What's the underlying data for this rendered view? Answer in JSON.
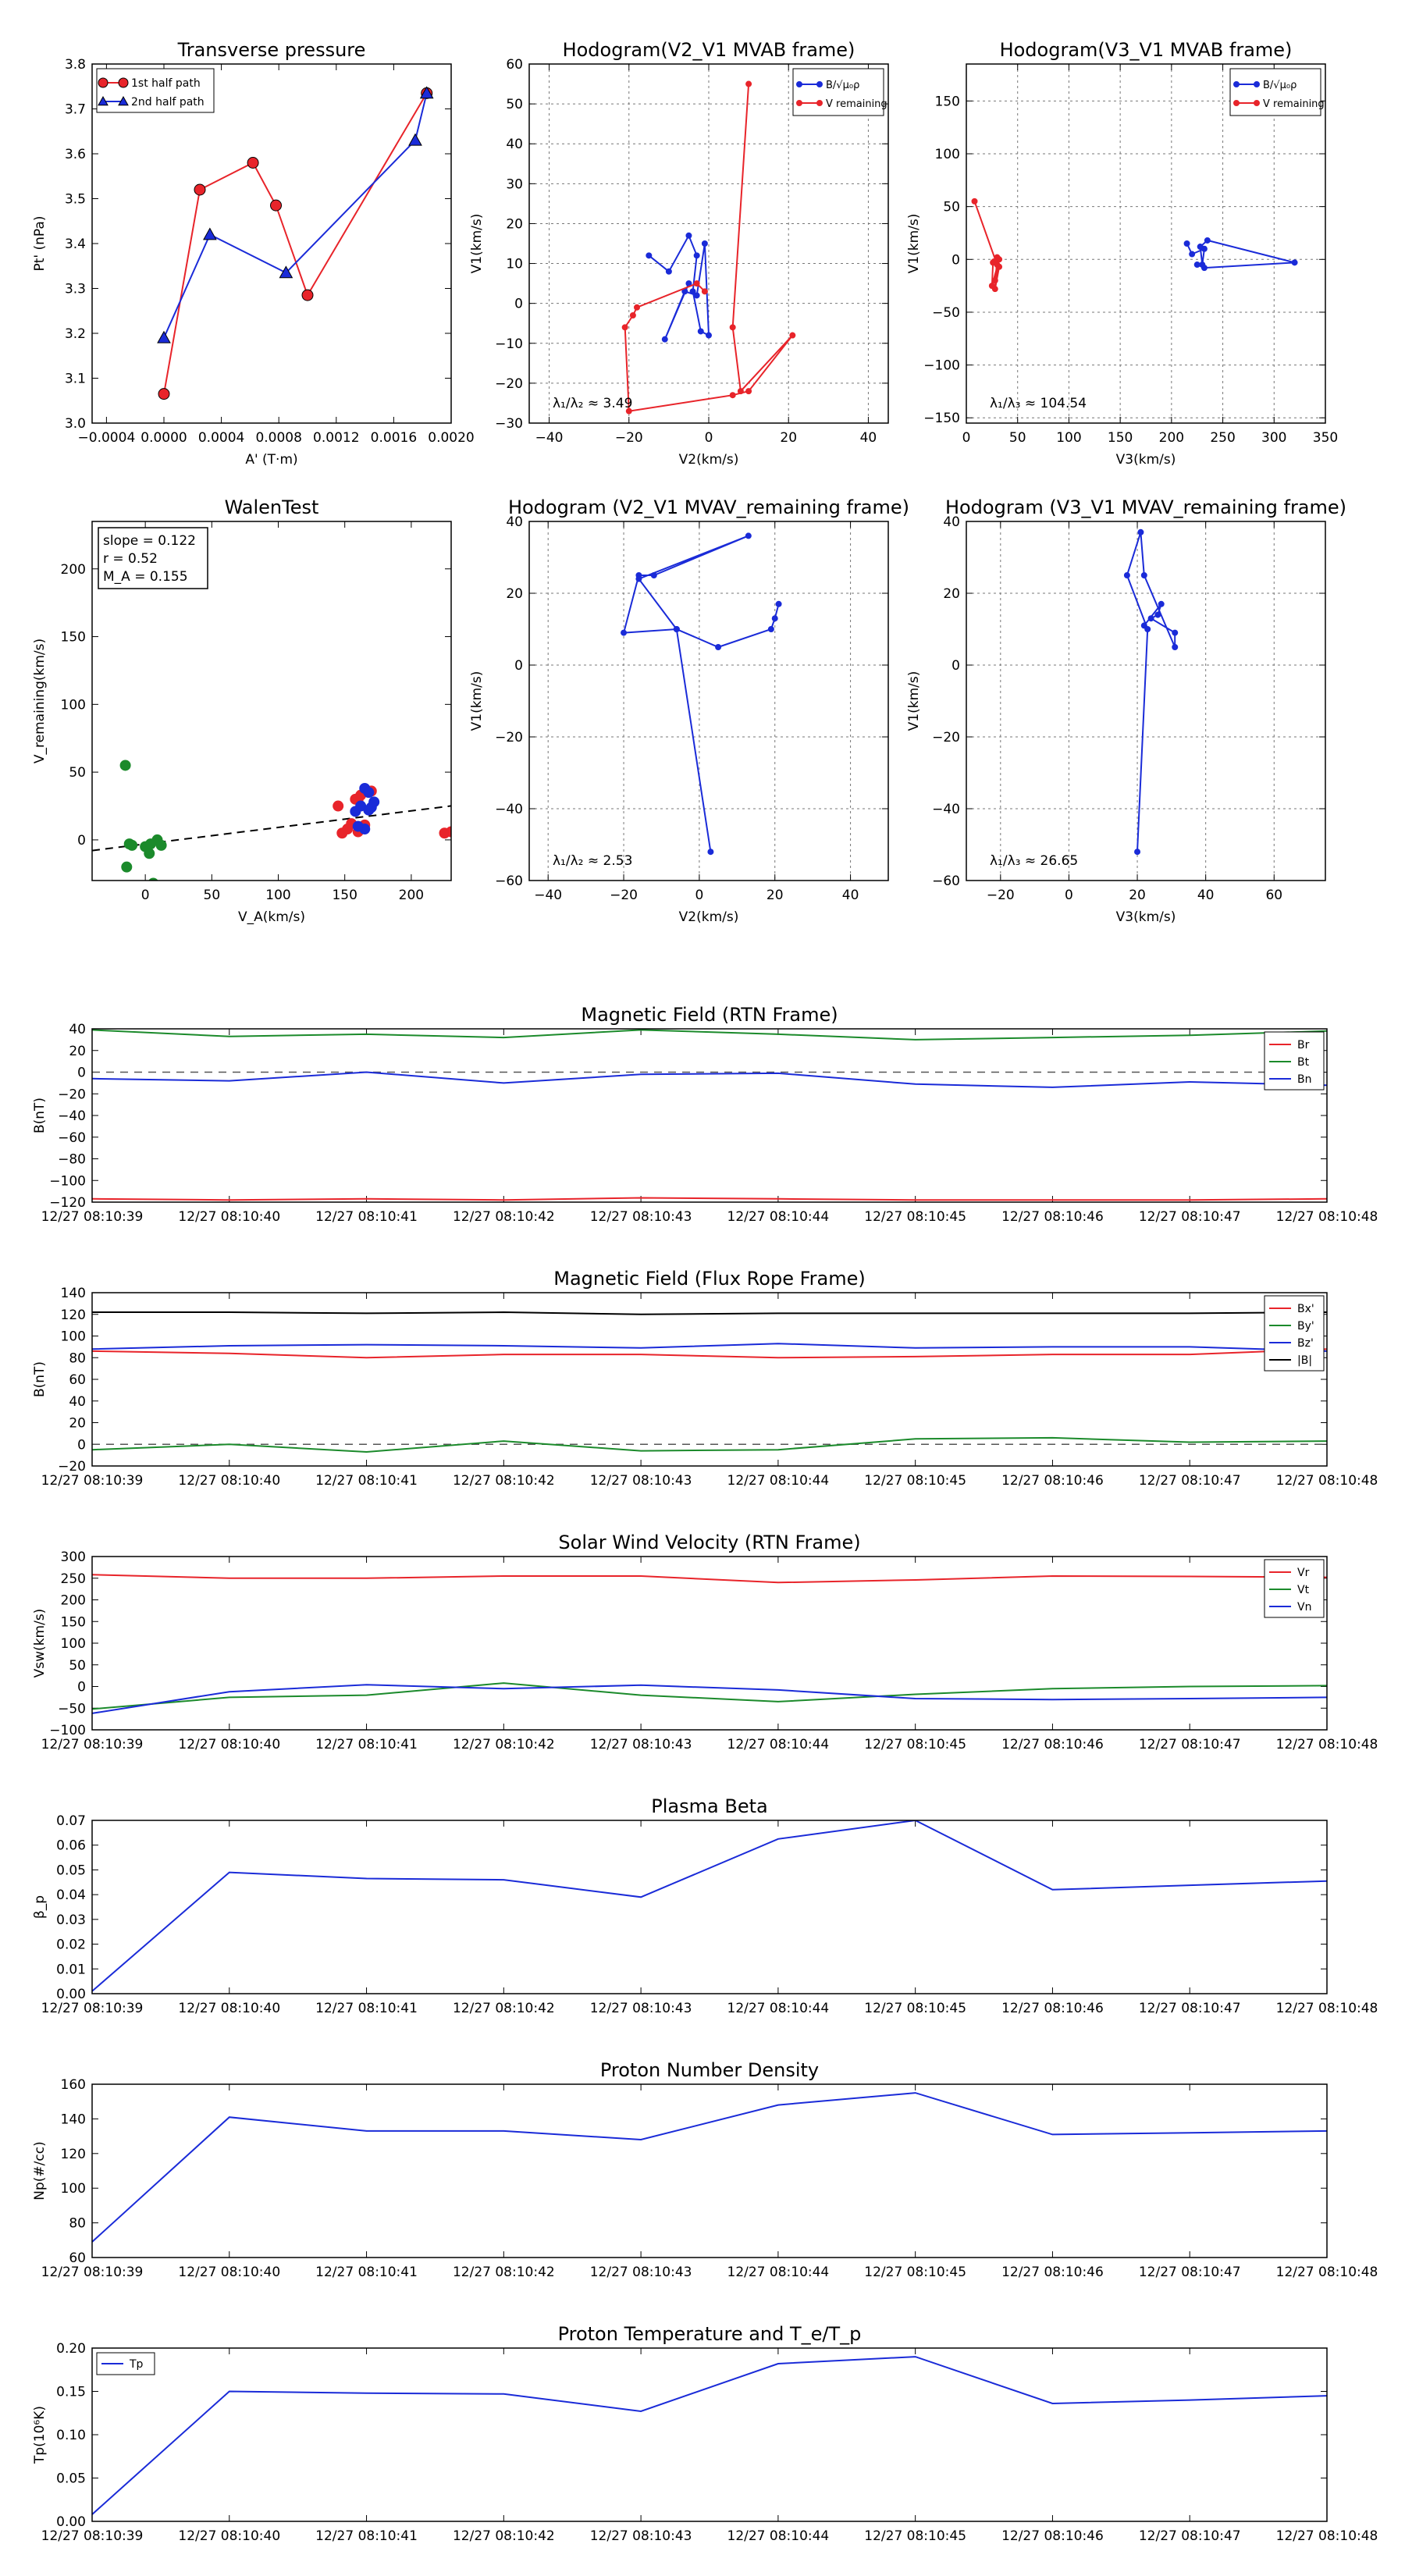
{
  "colors": {
    "red": "#e8242a",
    "green": "#1b8a2b",
    "blue": "#1a2bd8",
    "black": "#000000",
    "grid": "#777777"
  },
  "chart_data": [
    {
      "id": "tp",
      "type": "line",
      "title": "Transverse pressure",
      "xlabel": "A' (T·m)",
      "ylabel": "Pt' (nPa)",
      "xlim": [
        -0.0005,
        0.002
      ],
      "ylim": [
        3.0,
        3.8
      ],
      "grid": false,
      "xticks": [
        -0.0004,
        0,
        0.0004,
        0.0008,
        0.0012,
        0.0016,
        0.002
      ],
      "xtick_labels": [
        "−0.0004",
        "0.0000",
        "0.0004",
        "0.0008",
        "0.0012",
        "0.0016",
        "0.0020"
      ],
      "yticks": [
        3.0,
        3.1,
        3.2,
        3.3,
        3.4,
        3.5,
        3.6,
        3.7,
        3.8
      ],
      "ytick_labels": [
        "3.0",
        "3.1",
        "3.2",
        "3.3",
        "3.4",
        "3.5",
        "3.6",
        "3.7",
        "3.8"
      ],
      "legend": "top-left",
      "series": [
        {
          "name": "1st half path",
          "color": "red",
          "marker": "circle",
          "x": [
            0.0,
            0.00025,
            0.00062,
            0.00078,
            0.001,
            0.00183
          ],
          "y": [
            3.065,
            3.52,
            3.58,
            3.485,
            3.285,
            3.735
          ]
        },
        {
          "name": "2nd half path",
          "color": "blue",
          "marker": "triangle",
          "x": [
            0.0,
            0.00032,
            0.00085,
            0.00175,
            0.00183
          ],
          "y": [
            3.19,
            3.42,
            3.335,
            3.63,
            3.735
          ]
        }
      ]
    },
    {
      "id": "h1",
      "type": "line",
      "title": "Hodogram(V2_V1 MVAB frame)",
      "xlabel": "V2(km/s)",
      "ylabel": "V1(km/s)",
      "xlim": [
        -45,
        45
      ],
      "ylim": [
        -30,
        60
      ],
      "grid": true,
      "xticks": [
        -40,
        -20,
        0,
        20,
        40
      ],
      "xtick_labels": [
        "−40",
        "−20",
        "0",
        "20",
        "40"
      ],
      "yticks": [
        -30,
        -20,
        -10,
        0,
        10,
        20,
        30,
        40,
        50,
        60
      ],
      "ytick_labels": [
        "−30",
        "−20",
        "−10",
        "0",
        "10",
        "20",
        "30",
        "40",
        "50",
        "60"
      ],
      "legend": "top-right",
      "annotation": "λ₁/λ₂ ≈ 3.49",
      "series": [
        {
          "name": "B/√μ₀ρ",
          "color": "blue",
          "marker": "dot",
          "x": [
            -15,
            -10,
            -5,
            -3,
            -4,
            -2,
            0,
            -1,
            -3,
            -6,
            -11,
            -5
          ],
          "y": [
            12,
            8,
            17,
            12,
            3,
            -7,
            -8,
            15,
            2,
            3,
            -9,
            5
          ]
        },
        {
          "name": "V remaining",
          "color": "red",
          "marker": "dot",
          "x": [
            10,
            6,
            8,
            21,
            10,
            6,
            -20,
            -21,
            -19,
            -18,
            -3,
            -1
          ],
          "y": [
            55,
            -6,
            -22,
            -8,
            -22,
            -23,
            -27,
            -6,
            -3,
            -1,
            5,
            3
          ]
        }
      ]
    },
    {
      "id": "h2",
      "type": "line",
      "title": "Hodogram(V3_V1 MVAB frame)",
      "xlabel": "V3(km/s)",
      "ylabel": "V1(km/s)",
      "xlim": [
        0,
        350
      ],
      "ylim": [
        -155,
        185
      ],
      "grid": true,
      "xticks": [
        0,
        50,
        100,
        150,
        200,
        250,
        300,
        350
      ],
      "xtick_labels": [
        "0",
        "50",
        "100",
        "150",
        "200",
        "250",
        "300",
        "350"
      ],
      "yticks": [
        -150,
        -100,
        -50,
        0,
        50,
        100,
        150
      ],
      "ytick_labels": [
        "−150",
        "−100",
        "−50",
        "0",
        "50",
        "100",
        "150"
      ],
      "legend": "top-right",
      "annotation": "λ₁/λ₃ ≈ 104.54",
      "series": [
        {
          "name": "B/√μ₀ρ",
          "color": "blue",
          "marker": "dot",
          "x": [
            215,
            220,
            232,
            230,
            228,
            235,
            320,
            232,
            225
          ],
          "y": [
            15,
            5,
            10,
            -5,
            12,
            18,
            -3,
            -8,
            -5
          ]
        },
        {
          "name": "V remaining",
          "color": "red",
          "marker": "dot",
          "x": [
            8,
            30,
            28,
            32,
            25,
            26,
            30,
            28,
            32,
            27
          ],
          "y": [
            55,
            -5,
            -20,
            0,
            -25,
            -3,
            2,
            -28,
            -7,
            -2
          ]
        }
      ]
    },
    {
      "id": "walen",
      "type": "scatter",
      "title": "WalenTest",
      "xlabel": "V_A(km/s)",
      "ylabel": "V_remaining(km/s)",
      "xlim": [
        -40,
        230
      ],
      "ylim": [
        -30,
        235
      ],
      "grid": false,
      "xticks": [
        0,
        50,
        100,
        150,
        200
      ],
      "xtick_labels": [
        "0",
        "50",
        "100",
        "150",
        "200"
      ],
      "yticks": [
        0,
        50,
        100,
        150,
        200
      ],
      "ytick_labels": [
        "0",
        "50",
        "100",
        "150",
        "200"
      ],
      "text_box": [
        "slope = 0.122",
        "r = 0.52",
        "M_A = 0.155"
      ],
      "fit_line": {
        "slope": 0.122,
        "intercept": -3
      },
      "series": [
        {
          "name": "red",
          "color": "red",
          "x": [
            145,
            148,
            152,
            155,
            158,
            160,
            162,
            165,
            170,
            225,
            230,
            160
          ],
          "y": [
            25,
            5,
            8,
            12,
            30,
            6,
            33,
            11,
            36,
            5,
            6,
            30
          ]
        },
        {
          "name": "green",
          "color": "green",
          "x": [
            -15,
            -12,
            -10,
            0,
            3,
            6,
            9,
            12,
            4,
            -14
          ],
          "y": [
            55,
            -3,
            -4,
            -5,
            -10,
            -32,
            0,
            -4,
            -3,
            -20
          ]
        },
        {
          "name": "blue",
          "color": "blue",
          "x": [
            158,
            162,
            165,
            168,
            170,
            172,
            165,
            160,
            168
          ],
          "y": [
            21,
            25,
            38,
            22,
            24,
            28,
            8,
            10,
            35
          ]
        }
      ]
    },
    {
      "id": "h3",
      "type": "line",
      "title": "Hodogram (V2_V1 MVAV_remaining frame)",
      "xlabel": "V2(km/s)",
      "ylabel": "V1(km/s)",
      "xlim": [
        -45,
        50
      ],
      "ylim": [
        -60,
        40
      ],
      "grid": true,
      "xticks": [
        -40,
        -20,
        0,
        20,
        40
      ],
      "xtick_labels": [
        "−40",
        "−20",
        "0",
        "20",
        "40"
      ],
      "yticks": [
        -60,
        -40,
        -20,
        0,
        20,
        40
      ],
      "ytick_labels": [
        "−60",
        "−40",
        "−20",
        "0",
        "20",
        "40"
      ],
      "annotation": "λ₁/λ₂ ≈ 2.53",
      "series": [
        {
          "name": "path",
          "color": "blue",
          "marker": "dot",
          "x": [
            3,
            -6,
            -20,
            -16,
            -12,
            13,
            -16,
            -6,
            5,
            19,
            20,
            21
          ],
          "y": [
            -52,
            10,
            9,
            25,
            25,
            36,
            24,
            10,
            5,
            10,
            13,
            17
          ]
        }
      ]
    },
    {
      "id": "h4",
      "type": "line",
      "title": "Hodogram (V3_V1 MVAV_remaining frame)",
      "xlabel": "V3(km/s)",
      "ylabel": "V1(km/s)",
      "xlim": [
        -30,
        75
      ],
      "ylim": [
        -60,
        40
      ],
      "grid": true,
      "xticks": [
        -20,
        0,
        20,
        40,
        60
      ],
      "xtick_labels": [
        "−20",
        "0",
        "20",
        "40",
        "60"
      ],
      "yticks": [
        -60,
        -40,
        -20,
        0,
        20,
        40
      ],
      "ytick_labels": [
        "−60",
        "−40",
        "−20",
        "0",
        "20",
        "40"
      ],
      "annotation": "λ₁/λ₃ ≈ 26.65",
      "series": [
        {
          "name": "path",
          "color": "blue",
          "marker": "dot",
          "x": [
            20,
            23,
            17,
            21,
            22,
            31,
            31,
            24,
            26,
            27,
            22
          ],
          "y": [
            -52,
            10,
            25,
            37,
            25,
            5,
            9,
            13,
            14,
            17,
            11
          ]
        }
      ]
    },
    {
      "id": "ts1",
      "type": "line",
      "title": "Magnetic Field (RTN Frame)",
      "ylabel": "B(nT)",
      "ylim": [
        -120,
        40
      ],
      "yticks": [
        -120,
        -100,
        -80,
        -60,
        -40,
        -20,
        0,
        20,
        40
      ],
      "ytick_labels": [
        "−120",
        "−100",
        "−80",
        "−60",
        "−40",
        "−20",
        "0",
        "20",
        "40"
      ],
      "zero_line": true,
      "legend": "top-right",
      "x": [
        0,
        1,
        2,
        3,
        4,
        5,
        6,
        7,
        8,
        9
      ],
      "series": [
        {
          "name": "Br",
          "color": "red",
          "values": [
            -117,
            -118,
            -117,
            -118,
            -116,
            -117,
            -118,
            -118,
            -118,
            -117
          ]
        },
        {
          "name": "Bt",
          "color": "green",
          "values": [
            39,
            33,
            35,
            32,
            39,
            35,
            30,
            32,
            34,
            38
          ]
        },
        {
          "name": "Bn",
          "color": "blue",
          "values": [
            -6,
            -8,
            0,
            -10,
            -2,
            -1,
            -11,
            -14,
            -9,
            -12
          ]
        }
      ]
    },
    {
      "id": "ts2",
      "type": "line",
      "title": "Magnetic Field (Flux Rope Frame)",
      "ylabel": "B(nT)",
      "ylim": [
        -20,
        140
      ],
      "yticks": [
        -20,
        0,
        20,
        40,
        60,
        80,
        100,
        120,
        140
      ],
      "ytick_labels": [
        "−20",
        "0",
        "20",
        "40",
        "60",
        "80",
        "100",
        "120",
        "140"
      ],
      "zero_line": true,
      "legend": "top-right",
      "x": [
        0,
        1,
        2,
        3,
        4,
        5,
        6,
        7,
        8,
        9
      ],
      "series": [
        {
          "name": "Bx'",
          "color": "red",
          "values": [
            86,
            84,
            80,
            83,
            83,
            80,
            81,
            83,
            83,
            88
          ]
        },
        {
          "name": "By'",
          "color": "green",
          "values": [
            -5,
            0,
            -7,
            3,
            -6,
            -5,
            5,
            6,
            2,
            3
          ]
        },
        {
          "name": "Bz'",
          "color": "blue",
          "values": [
            88,
            91,
            92,
            91,
            89,
            93,
            89,
            90,
            90,
            86
          ]
        },
        {
          "name": "|B|",
          "color": "black",
          "values": [
            122,
            122,
            121,
            122,
            120,
            121,
            121,
            121,
            121,
            122
          ]
        }
      ]
    },
    {
      "id": "ts3",
      "type": "line",
      "title": "Solar Wind Velocity (RTN Frame)",
      "ylabel": "Vsw(km/s)",
      "ylim": [
        -100,
        300
      ],
      "yticks": [
        -100,
        -50,
        0,
        50,
        100,
        150,
        200,
        250,
        300
      ],
      "ytick_labels": [
        "−100",
        "−50",
        "0",
        "50",
        "100",
        "150",
        "200",
        "250",
        "300"
      ],
      "zero_line": false,
      "legend": "top-right",
      "x": [
        0,
        1,
        2,
        3,
        4,
        5,
        6,
        7,
        8,
        9
      ],
      "series": [
        {
          "name": "Vr",
          "color": "red",
          "values": [
            258,
            250,
            250,
            255,
            255,
            240,
            246,
            255,
            254,
            252
          ]
        },
        {
          "name": "Vt",
          "color": "green",
          "values": [
            -52,
            -25,
            -20,
            8,
            -20,
            -35,
            -18,
            -5,
            0,
            2
          ]
        },
        {
          "name": "Vn",
          "color": "blue",
          "values": [
            -62,
            -12,
            4,
            -5,
            3,
            -8,
            -28,
            -30,
            -28,
            -25
          ]
        }
      ]
    },
    {
      "id": "ts4",
      "type": "line",
      "title": "Plasma Beta",
      "ylabel": "β_p",
      "ylim": [
        0,
        0.07
      ],
      "yticks": [
        0,
        0.01,
        0.02,
        0.03,
        0.04,
        0.05,
        0.06,
        0.07
      ],
      "ytick_labels": [
        "0.00",
        "0.01",
        "0.02",
        "0.03",
        "0.04",
        "0.05",
        "0.06",
        "0.07"
      ],
      "x": [
        0,
        1,
        2,
        3,
        4,
        5,
        6,
        7,
        8,
        9
      ],
      "series": [
        {
          "name": "beta",
          "color": "blue",
          "values": [
            0.001,
            0.049,
            0.0465,
            0.046,
            0.039,
            0.0625,
            0.07,
            0.042,
            0.0438,
            0.0455
          ]
        }
      ]
    },
    {
      "id": "ts5",
      "type": "line",
      "title": "Proton Number Density",
      "ylabel": "Np(#/cc)",
      "ylim": [
        60,
        160
      ],
      "yticks": [
        60,
        80,
        100,
        120,
        140,
        160
      ],
      "ytick_labels": [
        "60",
        "80",
        "100",
        "120",
        "140",
        "160"
      ],
      "x": [
        0,
        1,
        2,
        3,
        4,
        5,
        6,
        7,
        8,
        9
      ],
      "series": [
        {
          "name": "Np",
          "color": "blue",
          "values": [
            69,
            141,
            133,
            133,
            128,
            148,
            155,
            131,
            132,
            133
          ]
        }
      ]
    },
    {
      "id": "ts6",
      "type": "line",
      "title": "Proton Temperature and T_e/T_p",
      "ylabel": "Tp(10⁶K)",
      "ylim": [
        0,
        0.2
      ],
      "yticks": [
        0,
        0.05,
        0.1,
        0.15,
        0.2
      ],
      "ytick_labels": [
        "0.00",
        "0.05",
        "0.10",
        "0.15",
        "0.20"
      ],
      "legend": "top-left",
      "x": [
        0,
        1,
        2,
        3,
        4,
        5,
        6,
        7,
        8,
        9
      ],
      "series": [
        {
          "name": "Tp",
          "color": "blue",
          "values": [
            0.008,
            0.15,
            0.148,
            0.147,
            0.127,
            0.182,
            0.19,
            0.136,
            0.14,
            0.145
          ]
        }
      ]
    }
  ],
  "time_labels": [
    "12/27 08:10:39",
    "12/27 08:10:40",
    "12/27 08:10:41",
    "12/27 08:10:42",
    "12/27 08:10:43",
    "12/27 08:10:44",
    "12/27 08:10:45",
    "12/27 08:10:46",
    "12/27 08:10:47",
    "12/27 08:10:48"
  ]
}
